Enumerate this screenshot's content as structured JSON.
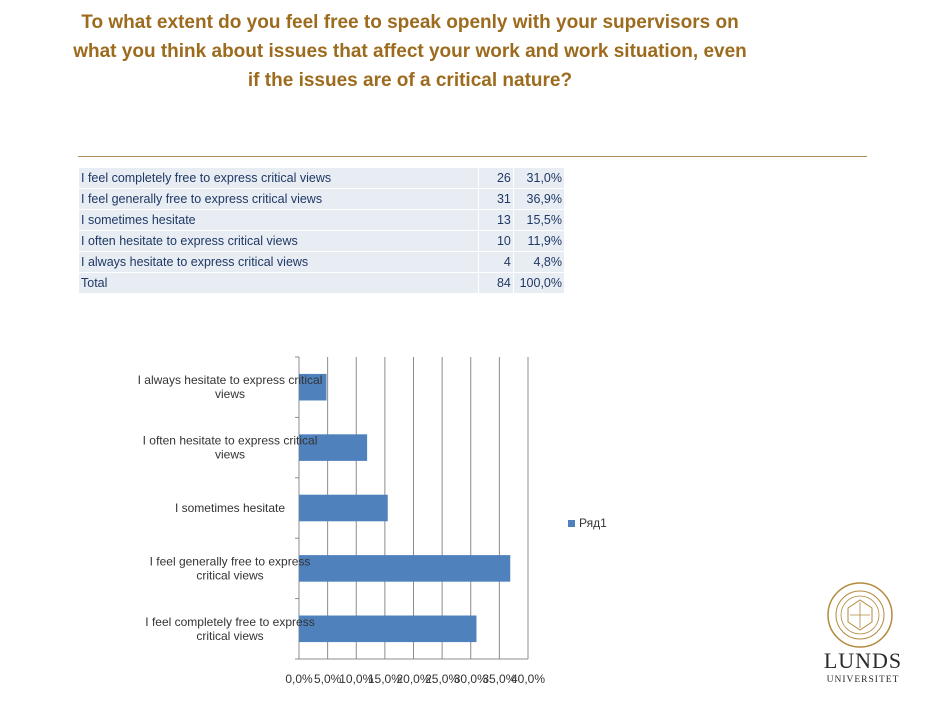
{
  "title": "To what extent do you feel free to speak openly with your supervisors on what you think about issues that affect your work and work situation, even  if the issues are of a critical nature?",
  "table": {
    "rows": [
      {
        "label": "I feel completely free to express critical views",
        "count": "26",
        "pct": "31,0%"
      },
      {
        "label": "I feel generally free to express critical views",
        "count": "31",
        "pct": "36,9%"
      },
      {
        "label": "I sometimes hesitate",
        "count": "13",
        "pct": "15,5%"
      },
      {
        "label": "I often hesitate to express critical views",
        "count": "10",
        "pct": "11,9%"
      },
      {
        "label": "I always hesitate to express critical views",
        "count": "4",
        "pct": "4,8%"
      },
      {
        "label": "Total",
        "count": "84",
        "pct": "100,0%"
      }
    ]
  },
  "chart_data": {
    "type": "bar",
    "orientation": "horizontal",
    "categories": [
      [
        "I feel completely free to express",
        "critical views"
      ],
      [
        "I feel generally free to express",
        "critical views"
      ],
      [
        "I sometimes hesitate"
      ],
      [
        "I often hesitate to express critical",
        "views"
      ],
      [
        "I always hesitate to express critical",
        "views"
      ]
    ],
    "series": [
      {
        "name": "Ряд1",
        "values": [
          31.0,
          36.9,
          15.5,
          11.9,
          4.8
        ],
        "color": "#4F81BD"
      }
    ],
    "xlim": [
      0,
      40
    ],
    "xticks": [
      "0,0%",
      "5,0%",
      "10,0%",
      "15,0%",
      "20,0%",
      "25,0%",
      "30,0%",
      "35,0%",
      "40,0%"
    ],
    "grid": true,
    "legend_position": "right"
  },
  "logo": {
    "name": "LUNDS",
    "sub": "UNIVERSITET",
    "color": "#B38A3C"
  }
}
